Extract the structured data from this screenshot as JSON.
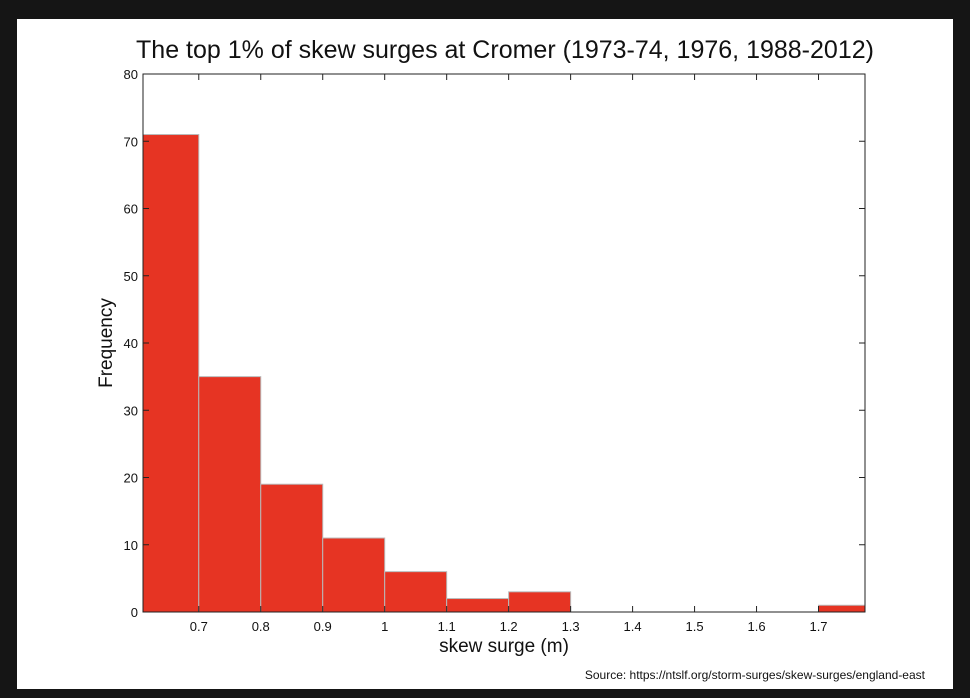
{
  "chart_data": {
    "type": "bar",
    "title": "The top 1% of skew surges at Cromer (1973-74, 1976, 1988-2012)",
    "xlabel": "skew surge (m)",
    "ylabel": "Frequency",
    "bin_edges": [
      0.6,
      0.7,
      0.8,
      0.9,
      1.0,
      1.1,
      1.2,
      1.3,
      1.4,
      1.5,
      1.6,
      1.7,
      1.8
    ],
    "values": [
      71,
      35,
      19,
      11,
      6,
      2,
      3,
      0,
      0,
      0,
      0,
      1
    ],
    "xlim": [
      0.61,
      1.775
    ],
    "ylim": [
      0,
      80
    ],
    "x_ticks": [
      0.7,
      0.8,
      0.9,
      1.0,
      1.1,
      1.2,
      1.3,
      1.4,
      1.5,
      1.6,
      1.7
    ],
    "x_tick_labels": [
      "0.7",
      "0.8",
      "0.9",
      "1",
      "1.1",
      "1.2",
      "1.3",
      "1.4",
      "1.5",
      "1.6",
      "1.7"
    ],
    "y_ticks": [
      0,
      10,
      20,
      30,
      40,
      50,
      60,
      70,
      80
    ],
    "y_tick_labels": [
      "0",
      "10",
      "20",
      "30",
      "40",
      "50",
      "60",
      "70",
      "80"
    ],
    "bar_color": "#e63423",
    "bar_edge_color": "#b9b9b9",
    "grid": false,
    "legend": "none"
  },
  "source_note": "Source: https://ntslf.org/storm-surges/skew-surges/england-east"
}
